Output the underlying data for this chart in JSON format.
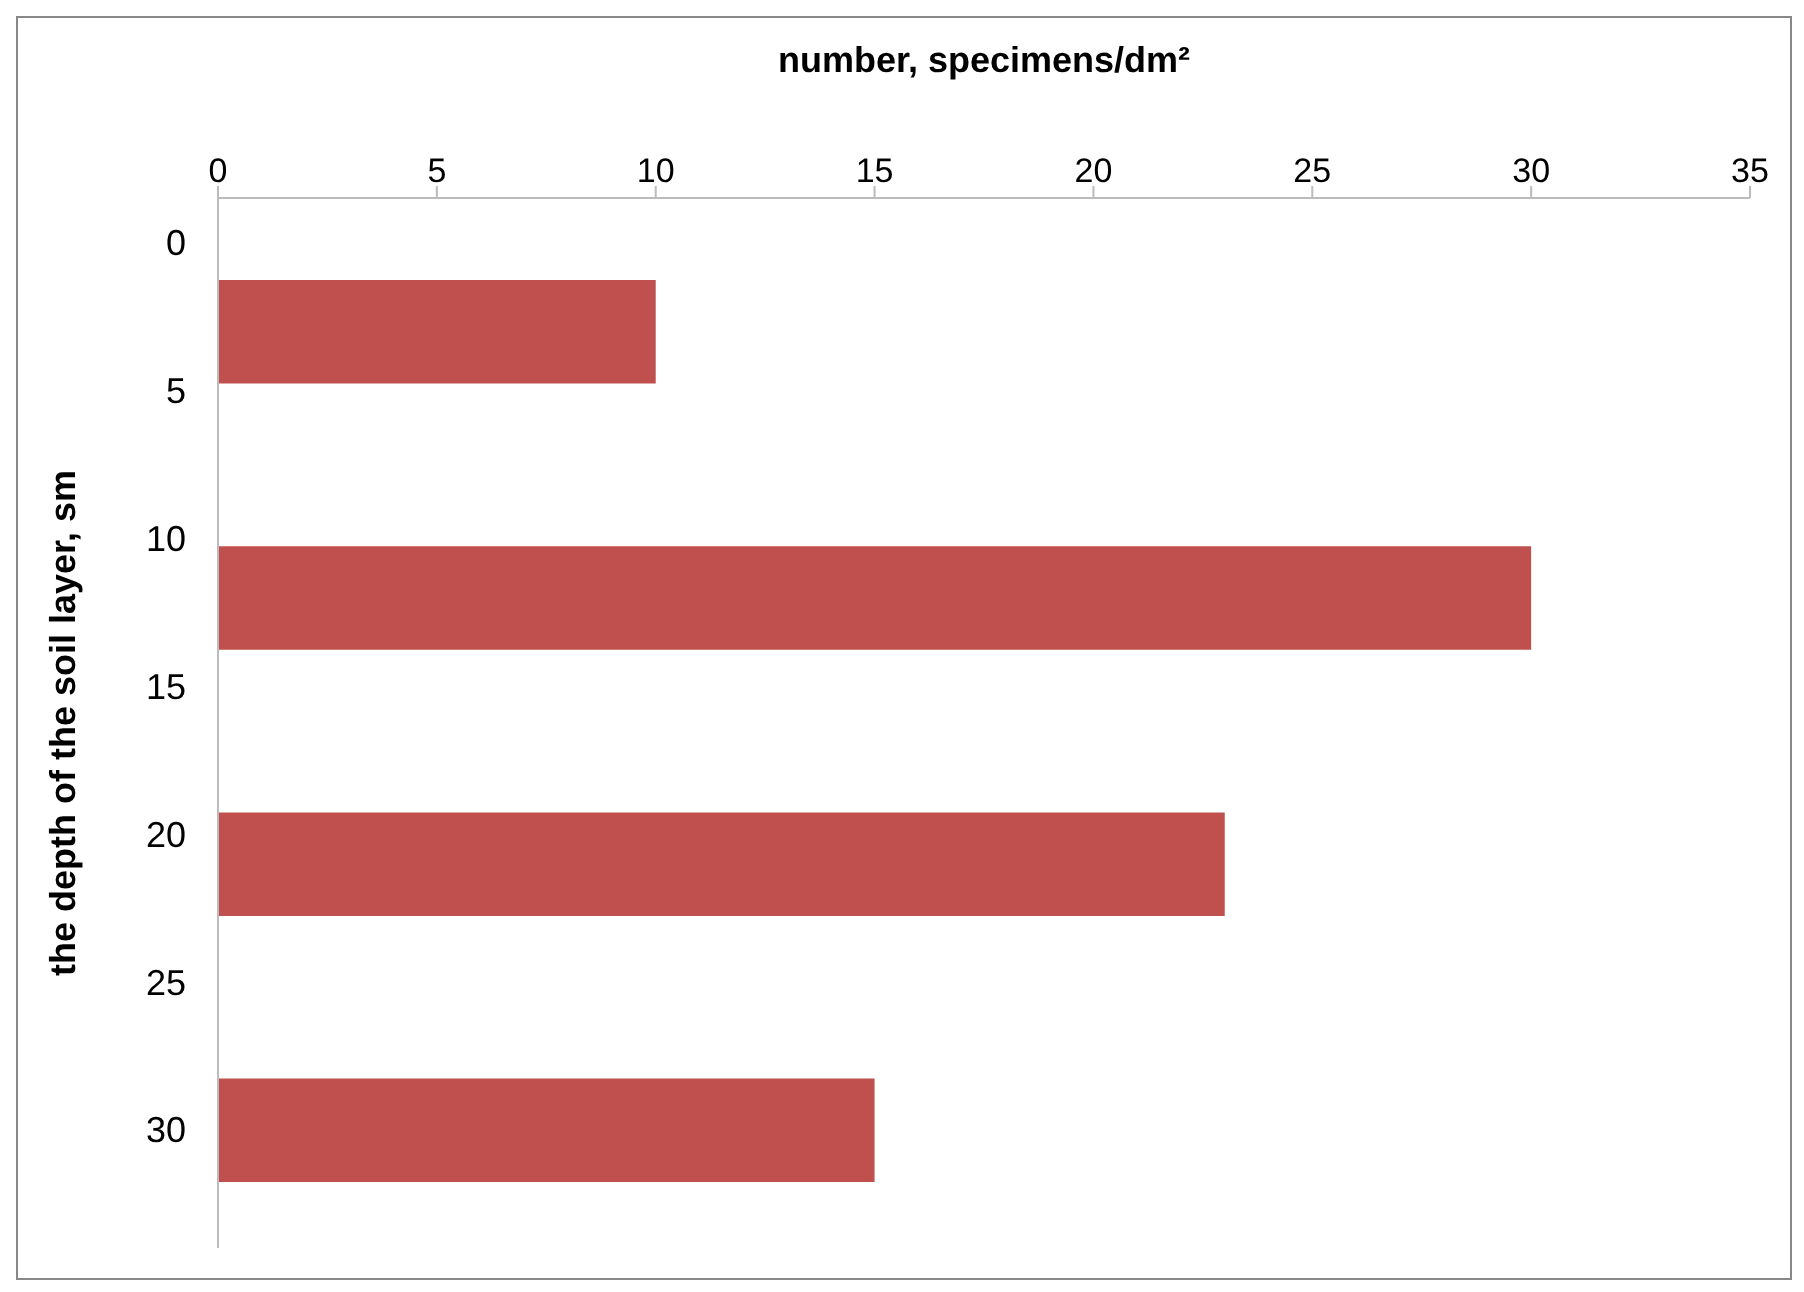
{
  "chart_data": {
    "type": "bar",
    "orientation": "horizontal",
    "xlabel": "number,  specimens/dm²",
    "ylabel": "the depth of the soil layer, sm",
    "x": [
      3,
      12,
      21,
      30
    ],
    "values": [
      10,
      30,
      23,
      15
    ],
    "color": "#c0504d",
    "xlim": [
      0,
      35
    ],
    "xticks": [
      0,
      5,
      10,
      15,
      20,
      25,
      30,
      35
    ],
    "ylim": [
      34,
      -1.5
    ],
    "yticks": [
      0,
      5,
      10,
      15,
      20,
      25,
      30
    ],
    "grid": false,
    "legend": false
  }
}
